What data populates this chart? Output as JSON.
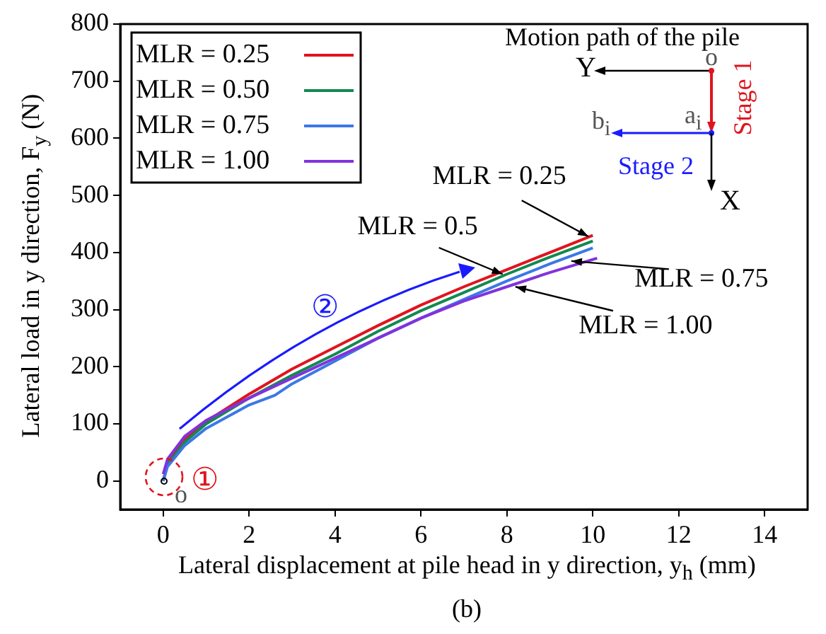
{
  "chart_data": {
    "type": "line",
    "xlabel": "Lateral displacement at pile head in y direction, y$_{h}$ (mm)",
    "ylabel": "Lateral load in y direction, F$_{y}$ (N)",
    "xlim": [
      -1,
      15
    ],
    "xticks": [
      0,
      2,
      4,
      6,
      8,
      10,
      12,
      14
    ],
    "ylim": [
      -50,
      800
    ],
    "yticks": [
      0,
      100,
      200,
      300,
      400,
      500,
      600,
      700,
      800
    ],
    "grid": false,
    "legend": "top left",
    "marker": "none",
    "line_style": "solid",
    "series": [
      {
        "name": "MLR = 0.25",
        "color": "#e0141e",
        "x": [
          0,
          0.1,
          0.5,
          1,
          2,
          3,
          4,
          5,
          6,
          7,
          8,
          9,
          10
        ],
        "values": [
          0,
          30,
          72,
          104,
          152,
          196,
          234,
          272,
          308,
          340,
          370,
          400,
          430
        ]
      },
      {
        "name": "MLR = 0.50",
        "color": "#118a50",
        "x": [
          0,
          0.1,
          0.5,
          1,
          2,
          3,
          4,
          5,
          6,
          7,
          8,
          9,
          10
        ],
        "values": [
          0,
          28,
          68,
          100,
          145,
          185,
          222,
          262,
          298,
          330,
          362,
          392,
          420
        ]
      },
      {
        "name": "MLR = 0.75",
        "color": "#3c78e6",
        "x": [
          0,
          0.1,
          0.5,
          1,
          2,
          2.6,
          3,
          4,
          5,
          6,
          7,
          8,
          9,
          10
        ],
        "values": [
          0,
          25,
          62,
          92,
          133,
          150,
          170,
          210,
          250,
          285,
          318,
          350,
          380,
          408
        ]
      },
      {
        "name": "MLR = 1.00",
        "color": "#8232dc",
        "x": [
          0,
          0.1,
          0.5,
          1,
          2,
          3,
          4,
          5,
          6,
          7,
          8,
          9,
          10.1
        ],
        "values": [
          12,
          38,
          78,
          106,
          145,
          180,
          215,
          250,
          285,
          315,
          340,
          365,
          390
        ]
      }
    ],
    "annotations": [
      "Motion path of the pile",
      "Y",
      "X",
      "o",
      "a$_{i}$",
      "b$_{i}$",
      "Stage 1",
      "Stage 2",
      "②",
      "①",
      "o",
      "(b)",
      {
        "text": "MLR = 0.25",
        "x": 9.9,
        "y": 428
      },
      {
        "text": "MLR = 0.5",
        "x": 7.9,
        "y": 362
      },
      {
        "text": "MLR = 0.75",
        "x": 9.5,
        "y": 385
      },
      {
        "text": "MLR = 1.00",
        "x": 8.2,
        "y": 340
      }
    ]
  }
}
